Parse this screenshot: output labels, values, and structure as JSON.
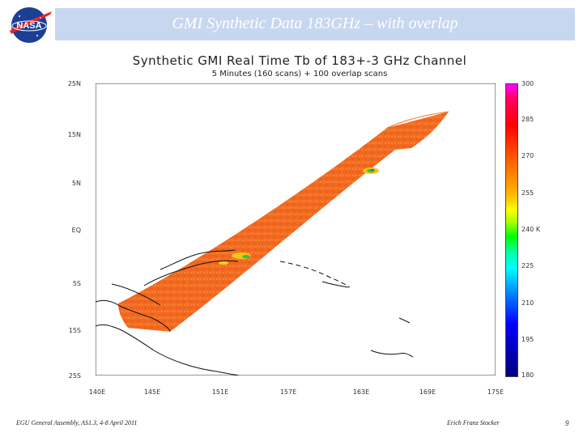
{
  "slide": {
    "title": "GMI Synthetic Data 183GHz – with overlap",
    "page_number": "9",
    "footer_left": "EGU General Assembly, AS1.3, 4-8 April 2011",
    "footer_right": "Erich Franz Stocker",
    "logo": {
      "text": "NASA",
      "icon": "nasa-meatball-logo"
    }
  },
  "chart_data": {
    "type": "heatmap",
    "title": "Synthetic GMI Real Time Tb of 183+-3 GHz Channel",
    "subtitle": "5 Minutes (160 scans) + 100 overlap scans",
    "x_ticks": [
      "140E",
      "145E",
      "151E",
      "157E",
      "163E",
      "169E",
      "175E"
    ],
    "y_ticks": [
      "25N",
      "15N",
      "5N",
      "EQ",
      "5S",
      "15S",
      "25S"
    ],
    "colorbar": {
      "ticks": [
        "300",
        "285",
        "270",
        "255",
        "240 K",
        "225",
        "210",
        "195",
        "180"
      ],
      "range": [
        180,
        300
      ],
      "units": "K"
    },
    "swath_dominant_value_K": 275
  },
  "colors": {
    "title_bar": "#c7d7ef",
    "swath_main": "#f36a20",
    "swath_light": "#f78a38",
    "coast": "#111111"
  }
}
